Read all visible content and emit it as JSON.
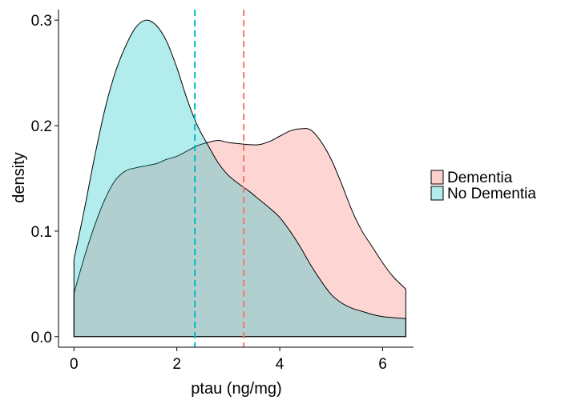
{
  "chart_data": {
    "type": "area",
    "title": "",
    "xlabel": "ptau (ng/mg)",
    "ylabel": "density",
    "xlim": [
      -0.3,
      6.6
    ],
    "ylim": [
      -0.01,
      0.31
    ],
    "x_ticks": [
      0,
      2,
      4,
      6
    ],
    "y_ticks": [
      0.0,
      0.1,
      0.2,
      0.3
    ],
    "x_tick_labels": [
      "0",
      "2",
      "4",
      "6"
    ],
    "y_tick_labels": [
      "0.0",
      "0.1",
      "0.2",
      "0.3"
    ],
    "grid": false,
    "legend_position": "right",
    "x": [
      0,
      0.2,
      0.4,
      0.6,
      0.8,
      1.0,
      1.2,
      1.4,
      1.6,
      1.8,
      2.0,
      2.2,
      2.4,
      2.6,
      2.8,
      3.0,
      3.2,
      3.4,
      3.6,
      3.8,
      4.0,
      4.2,
      4.4,
      4.6,
      4.8,
      5.0,
      5.2,
      5.4,
      5.6,
      5.8,
      6.0,
      6.2,
      6.45
    ],
    "series": [
      {
        "name": "Dementia",
        "color": "#F8766D",
        "fill": "#FBCFCB",
        "values": [
          0.041,
          0.075,
          0.105,
          0.13,
          0.148,
          0.157,
          0.16,
          0.162,
          0.164,
          0.168,
          0.171,
          0.176,
          0.181,
          0.184,
          0.186,
          0.184,
          0.183,
          0.182,
          0.182,
          0.185,
          0.19,
          0.195,
          0.197,
          0.196,
          0.185,
          0.168,
          0.145,
          0.12,
          0.1,
          0.085,
          0.07,
          0.057,
          0.045
        ],
        "mean_line": 3.3
      },
      {
        "name": "No Dementia",
        "color": "#00BFC4",
        "fill": "#B2EBED",
        "values": [
          0.073,
          0.12,
          0.17,
          0.215,
          0.25,
          0.275,
          0.293,
          0.3,
          0.295,
          0.28,
          0.255,
          0.225,
          0.2,
          0.182,
          0.165,
          0.153,
          0.145,
          0.138,
          0.13,
          0.122,
          0.113,
          0.1,
          0.085,
          0.068,
          0.053,
          0.04,
          0.032,
          0.027,
          0.024,
          0.021,
          0.019,
          0.018,
          0.017
        ],
        "mean_line": 2.35
      }
    ]
  }
}
